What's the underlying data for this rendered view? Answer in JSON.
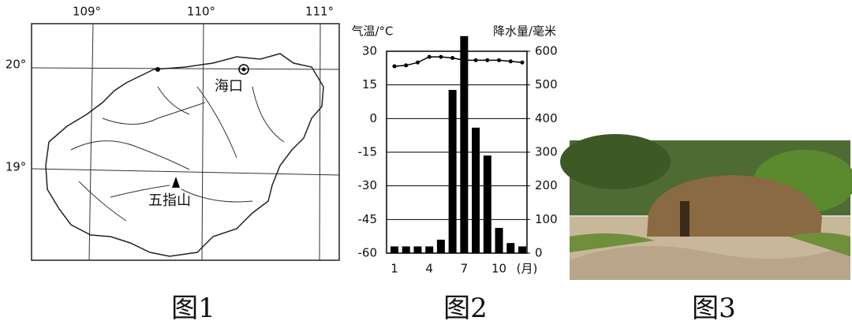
{
  "map": {
    "lon_labels": [
      "109°",
      "110°",
      "111°"
    ],
    "lat_labels": [
      "20°",
      "19°"
    ],
    "places": [
      "海口",
      "五指山"
    ]
  },
  "captions": [
    "图1",
    "图2",
    "图3"
  ],
  "chart_data": {
    "type": "combo",
    "y_label": "气温/°C",
    "y2_label": "降水量/毫米",
    "x_label": "(月)",
    "categories": [
      1,
      null,
      null,
      4,
      null,
      null,
      7,
      null,
      null,
      10,
      null,
      null
    ],
    "series": [
      {
        "name": "降水量",
        "type": "bar",
        "axis": "y2",
        "color": "#000000",
        "values": [
          20,
          20,
          20,
          20,
          40,
          485,
          645,
          373,
          290,
          75,
          30,
          20
        ]
      },
      {
        "name": "气温",
        "type": "line",
        "axis": "y",
        "color": "#000000",
        "values": [
          23.3,
          23.7,
          25,
          27.5,
          27.5,
          27,
          26,
          26,
          26,
          26,
          25.5,
          25
        ]
      }
    ],
    "ylim": [
      -60,
      30
    ],
    "yticks": [
      30,
      15,
      0,
      -15,
      -30,
      -45,
      -60
    ],
    "y2lim": [
      0,
      600
    ],
    "y2ticks": [
      600,
      500,
      400,
      300,
      200,
      100,
      0
    ],
    "grid": true
  }
}
